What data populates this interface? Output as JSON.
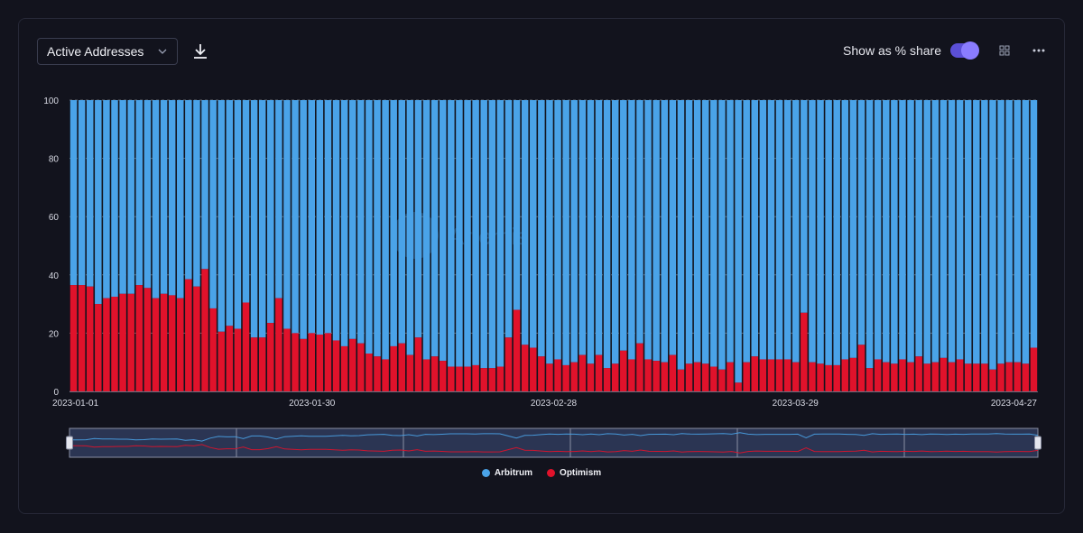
{
  "toolbar": {
    "metric_label": "Active Addresses",
    "share_label": "Show as % share",
    "share_enabled": true,
    "icons": [
      "chevron-down-icon",
      "download-icon",
      "grid-icon",
      "more-icon"
    ]
  },
  "watermark": "Artemis",
  "colors": {
    "background": "#12131d",
    "arbitrum": "#4aa3e8",
    "optimism": "#e0122b",
    "accent": "#5b4fd6"
  },
  "chart_data": {
    "type": "bar",
    "stacked": true,
    "percent_share": true,
    "start_date": "2023-01-01",
    "end_date": "2023-04-27",
    "x_ticks": [
      "2023-01-01",
      "2023-01-30",
      "2023-02-28",
      "2023-03-29",
      "2023-04-27"
    ],
    "ylim": [
      0,
      100
    ],
    "y_ticks": [
      0,
      20,
      40,
      60,
      80,
      100
    ],
    "grid": true,
    "legend_position": "bottom-center",
    "series": [
      {
        "name": "Arbitrum",
        "color": "#4aa3e8",
        "values": "remainder"
      },
      {
        "name": "Optimism",
        "color": "#e0122b",
        "values": [
          36.5,
          36.5,
          36,
          30,
          32,
          32.5,
          33.5,
          33.5,
          36.5,
          35.5,
          32,
          33.5,
          33,
          32,
          38.5,
          36,
          42,
          28.5,
          20.5,
          22.5,
          21.5,
          30.5,
          18.5,
          18.5,
          23.5,
          32,
          21.5,
          20,
          18,
          20,
          19.5,
          20,
          17.5,
          15.5,
          18,
          16.5,
          13,
          12,
          11,
          15.5,
          16.5,
          12.5,
          18.5,
          11,
          12,
          10.5,
          8.5,
          8.5,
          8.5,
          9,
          8,
          8,
          8.5,
          18.5,
          28,
          16,
          15,
          12,
          9.5,
          11,
          9,
          10,
          12.5,
          9.5,
          12.5,
          8,
          9.5,
          14,
          11,
          16.5,
          11,
          10.5,
          10,
          12.5,
          7.5,
          9.5,
          10,
          9.5,
          8.5,
          7.5,
          10,
          3,
          10,
          12,
          11,
          11,
          11,
          11,
          10,
          27,
          10,
          9.5,
          9,
          9,
          11,
          11.5,
          16,
          8,
          11,
          10,
          9.5,
          11,
          10,
          12,
          9.5,
          10,
          11.5,
          10,
          11,
          9.5,
          9.5,
          9.5,
          7.5,
          9.5,
          10,
          10,
          9.5,
          15
        ]
      }
    ]
  }
}
